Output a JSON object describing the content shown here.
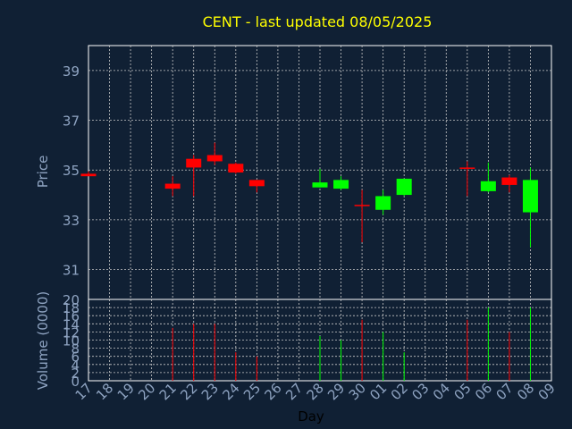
{
  "chart_data": {
    "type": "candlestick",
    "title": "CENT - last updated 08/05/2025",
    "xlabel": "Day",
    "price_axis": {
      "label": "Price",
      "ticks": [
        31,
        33,
        35,
        37,
        39
      ],
      "range": [
        29.8,
        40.0
      ]
    },
    "volume_axis": {
      "label": "Volume (0000)",
      "ticks": [
        0,
        2,
        4,
        6,
        8,
        10,
        12,
        14,
        16,
        18,
        20
      ],
      "range": [
        0,
        20
      ]
    },
    "x_ticks": [
      "17",
      "18",
      "19",
      "20",
      "21",
      "22",
      "23",
      "24",
      "25",
      "26",
      "27",
      "28",
      "29",
      "30",
      "01",
      "02",
      "03",
      "04",
      "05",
      "06",
      "07",
      "08",
      "09"
    ],
    "colors": {
      "up": "#00ff00",
      "down": "#ff0000",
      "grid": "#c8c8c8",
      "background": "#102034",
      "title": "#ffff00"
    },
    "candles": [
      {
        "day": "17",
        "open": 34.85,
        "high": 34.95,
        "low": 34.75,
        "close": 34.75,
        "volume": 0
      },
      {
        "day": "21",
        "open": 34.45,
        "high": 34.75,
        "low": 33.95,
        "close": 34.25,
        "volume": 13
      },
      {
        "day": "22",
        "open": 35.45,
        "high": 35.6,
        "low": 33.95,
        "close": 35.1,
        "volume": 14
      },
      {
        "day": "23",
        "open": 35.6,
        "high": 36.1,
        "low": 35.2,
        "close": 35.35,
        "volume": 14
      },
      {
        "day": "24",
        "open": 35.25,
        "high": 35.3,
        "low": 34.85,
        "close": 34.9,
        "volume": 7
      },
      {
        "day": "25",
        "open": 34.6,
        "high": 34.6,
        "low": 34.1,
        "close": 34.35,
        "volume": 6
      },
      {
        "day": "28",
        "open": 34.3,
        "high": 35.05,
        "low": 34.3,
        "close": 34.5,
        "volume": 11
      },
      {
        "day": "29",
        "open": 34.25,
        "high": 34.75,
        "low": 34.2,
        "close": 34.6,
        "volume": 10
      },
      {
        "day": "30",
        "open": 33.6,
        "high": 34.2,
        "low": 32.1,
        "close": 33.6,
        "volume": 15
      },
      {
        "day": "01",
        "open": 33.4,
        "high": 34.2,
        "low": 33.2,
        "close": 33.95,
        "volume": 12
      },
      {
        "day": "02",
        "open": 34.0,
        "high": 34.65,
        "low": 33.95,
        "close": 34.65,
        "volume": 7
      },
      {
        "day": "05",
        "open": 35.1,
        "high": 35.35,
        "low": 33.95,
        "close": 35.1,
        "volume": 15
      },
      {
        "day": "06",
        "open": 34.15,
        "high": 35.3,
        "low": 34.1,
        "close": 34.55,
        "volume": 18
      },
      {
        "day": "07",
        "open": 34.7,
        "high": 34.8,
        "low": 34.1,
        "close": 34.4,
        "volume": 12
      },
      {
        "day": "08",
        "open": 33.3,
        "high": 35.1,
        "low": 31.9,
        "close": 34.6,
        "volume": 18
      }
    ]
  }
}
